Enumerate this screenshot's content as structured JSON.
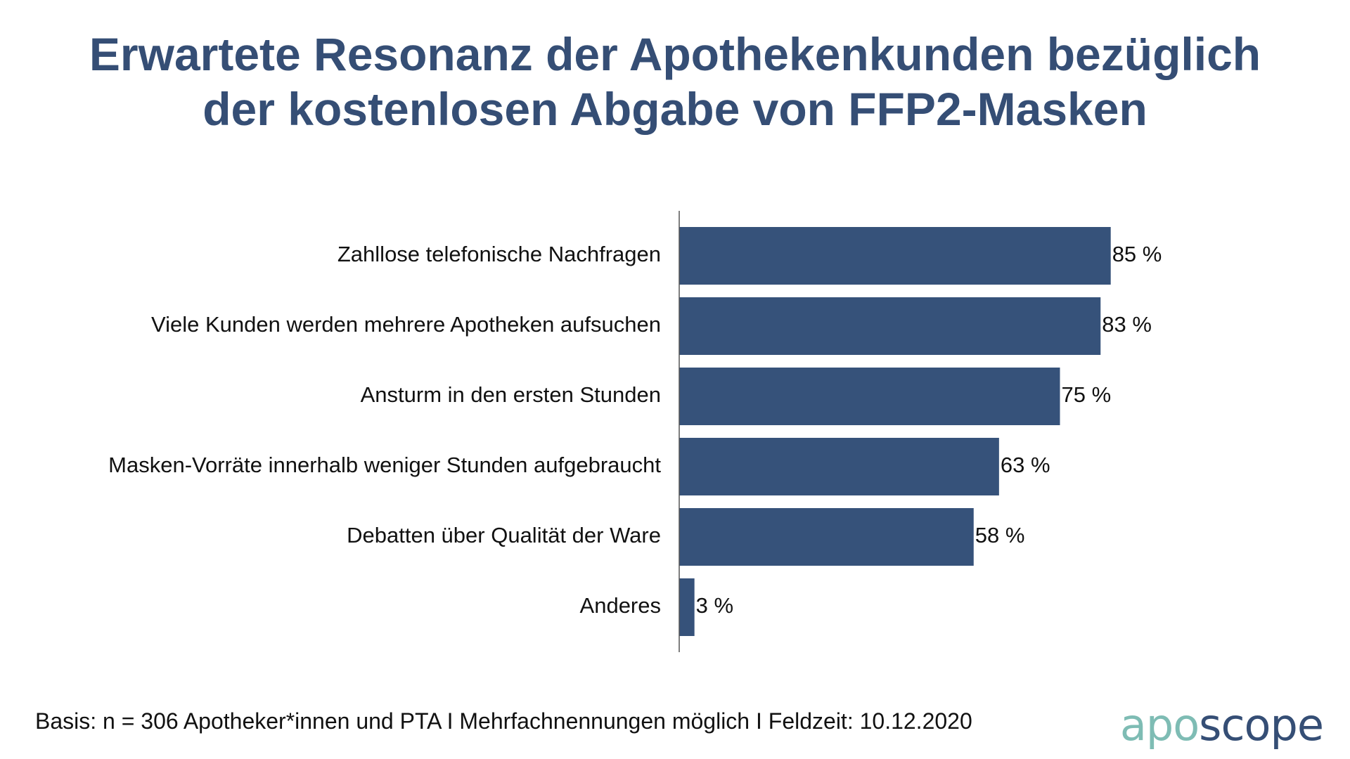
{
  "colors": {
    "title": "#354e75",
    "bar": "#36527a",
    "axis": "#555555",
    "text": "#111111",
    "logo_apo": "#7ebcb4",
    "logo_scope": "#354e75"
  },
  "header": {
    "title_line1": "Erwartete Resonanz der Apothekenkunden bezüglich",
    "title_line2": "der kostenlosen Abgabe von FFP2-Masken"
  },
  "chart_data": {
    "type": "bar",
    "orientation": "horizontal",
    "title": "Erwartete Resonanz der Apothekenkunden bezüglich der kostenlosen Abgabe von FFP2-Masken",
    "xlabel": "",
    "ylabel": "",
    "unit": "%",
    "xlim": [
      0,
      100
    ],
    "grid": false,
    "categories": [
      "Zahllose telefonische Nachfragen",
      "Viele Kunden werden mehrere Apotheken aufsuchen",
      "Ansturm in den ersten Stunden",
      "Masken-Vorräte innerhalb weniger Stunden aufgebraucht",
      "Debatten über Qualität der Ware",
      "Anderes"
    ],
    "values": [
      85,
      83,
      75,
      63,
      58,
      3
    ],
    "data_labels": [
      "85 %",
      "83 %",
      "75 %",
      "63 %",
      "58 %",
      "3 %"
    ]
  },
  "footer": {
    "note": "Basis: n = 306 Apotheker*innen und PTA I Mehrfachnennungen möglich I Feldzeit: 10.12.2020"
  },
  "logo": {
    "part1": "apo",
    "part2": "scope"
  }
}
